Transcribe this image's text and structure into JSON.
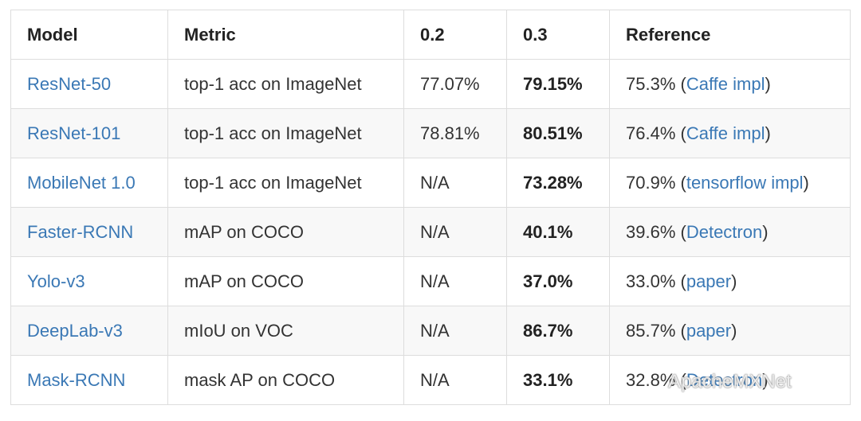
{
  "table": {
    "header": [
      "Model",
      "Metric",
      "0.2",
      "0.3",
      "Reference"
    ],
    "rows": [
      [
        "ResNet-50",
        "top-1 acc on ImageNet",
        "77.07%",
        "79.15%",
        [
          "75.3% (",
          "Caffe impl",
          ")"
        ]
      ],
      [
        "ResNet-101",
        "top-1 acc on ImageNet",
        "78.81%",
        "80.51%",
        [
          "76.4% (",
          "Caffe impl",
          ")"
        ]
      ],
      [
        "MobileNet 1.0",
        "top-1 acc on ImageNet",
        "N/A",
        "73.28%",
        [
          "70.9% (",
          "tensorflow impl",
          ")"
        ]
      ],
      [
        "Faster-RCNN",
        "mAP on COCO",
        "N/A",
        "40.1%",
        [
          "39.6% (",
          "Detectron",
          ")"
        ]
      ],
      [
        "Yolo-v3",
        "mAP on COCO",
        "N/A",
        "37.0%",
        [
          "33.0% (",
          "paper",
          ")"
        ]
      ],
      [
        "DeepLab-v3",
        "mIoU on VOC",
        "N/A",
        "86.7%",
        [
          "85.7% (",
          "paper",
          ")"
        ]
      ],
      [
        "Mask-RCNN",
        "mask AP on COCO",
        "N/A",
        "33.1%",
        [
          "32.8% (",
          "Detectron",
          ")"
        ]
      ]
    ]
  },
  "watermark": "ApacheMXNet"
}
